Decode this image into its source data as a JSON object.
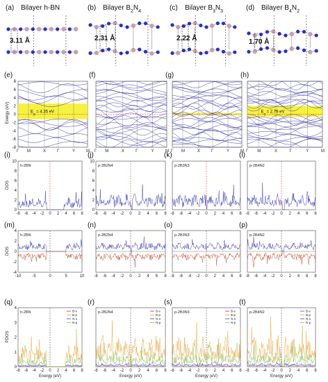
{
  "structures": [
    {
      "label": "(a)",
      "title_main": "Bilayer h-BN",
      "title_sub": "",
      "title_mid": "",
      "title_sub2": "",
      "distance": "3.11 Å"
    },
    {
      "label": "(b)",
      "title_main": "Bilayer B",
      "title_sub": "2",
      "title_mid": "N",
      "title_sub2": "4",
      "distance": "2.31 Å"
    },
    {
      "label": "(c)",
      "title_main": "Bilayer B",
      "title_sub": "3",
      "title_mid": "N",
      "title_sub2": "3",
      "distance": "2.22 Å"
    },
    {
      "label": "(d)",
      "title_main": "Bilayer B",
      "title_sub": "4",
      "title_mid": "N",
      "title_sub2": "2",
      "distance": "1.70 Å"
    }
  ],
  "bands": {
    "labels": [
      "(e)",
      "(f)",
      "(g)",
      "(h)"
    ],
    "ylabel": "Energy (eV)",
    "yticks": [
      "8",
      "6",
      "4",
      "2",
      "0",
      "-2",
      "-4",
      "-6",
      "-8"
    ],
    "kpoints": [
      "Γ",
      "M",
      "X",
      "Γ",
      "Y",
      "M"
    ],
    "gaps": [
      {
        "text": "E",
        "sub": "g",
        "value": " = 4.35 eV"
      },
      null,
      null,
      {
        "text": "E",
        "sub": "g",
        "value": " = 2.79 eV"
      }
    ]
  },
  "dos": {
    "labels": [
      "(i)",
      "(j)",
      "(k)",
      "(l)"
    ],
    "inset": [
      "h-2BN",
      "p-2B2N4",
      "p-2B3N3",
      "p-2B4N2"
    ],
    "ylabel": "DOS",
    "yticks_first": [
      "10",
      "8",
      "6",
      "4",
      "2",
      "0"
    ],
    "yticks_second": [
      "10",
      "8",
      "6",
      "4",
      "2",
      "0"
    ],
    "xticks": [
      "-8",
      "-6",
      "-4",
      "-2",
      "0",
      "2",
      "4",
      "6",
      "8"
    ]
  },
  "spin": {
    "labels": [
      "(m)",
      "(n)",
      "(o)",
      "(p)"
    ],
    "inset": [
      "h-2BN",
      "p-2B2N4",
      "p-2B3N3",
      "p-2B4N2"
    ],
    "ylabel": "DOS",
    "yticks": [
      "4",
      "2",
      "0",
      "-2",
      "-4"
    ],
    "xticks_first": [
      "-10",
      "-5",
      "0",
      "5",
      "10"
    ],
    "xticks_rest": [
      "-8",
      "-6",
      "-4",
      "-2",
      "0",
      "2",
      "4",
      "6",
      "8"
    ]
  },
  "pdos": {
    "labels": [
      "(q)",
      "(r)",
      "(s)",
      "(t)"
    ],
    "inset": [
      "h-2BN",
      "p-2B2N4",
      "p-2B3N3",
      "p-2B4N2"
    ],
    "ylabel": "PDOS",
    "yticks": [
      "4",
      "3",
      "2",
      "1",
      "0"
    ],
    "xlabel": "Energy (eV)",
    "xticks": [
      "-8",
      "-6",
      "-4",
      "-2",
      "0",
      "2",
      "4",
      "6",
      "8"
    ],
    "legend": [
      "B-s",
      "B-p",
      "N-s",
      "N-p"
    ],
    "legend_colors": [
      "#7a3b8f",
      "#e0a030",
      "#3a3ab0",
      "#7ac04a"
    ]
  },
  "colors": {
    "boron": "#c8a0b4",
    "nitrogen": "#2830c8",
    "band_line": "#2a2aa0",
    "fermi": "#d02020",
    "dos_line": "#2a2ab0",
    "spin_down": "#c04020",
    "gap_band": "#f6f01e"
  }
}
